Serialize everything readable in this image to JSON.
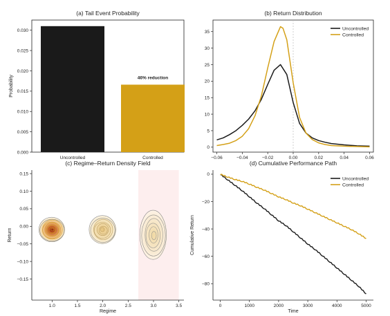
{
  "colors": {
    "uncontrolled": "#1a1a1a",
    "controlled": "#d4a017",
    "shade": "#fdeeee"
  },
  "chart_data": [
    {
      "type": "bar",
      "title": "(a) Tail Event Probability",
      "ylabel": "Probability",
      "categories": [
        "Uncontrolled",
        "Controlled"
      ],
      "values": [
        0.031,
        0.0166
      ],
      "ylim": [
        0,
        0.0325
      ],
      "yticks": [
        "0.000",
        "0.005",
        "0.010",
        "0.015",
        "0.020",
        "0.025",
        "0.030"
      ],
      "yticks_values": [
        0,
        0.005,
        0.01,
        0.015,
        0.02,
        0.025,
        0.03
      ],
      "annotation": "46% reduction"
    },
    {
      "type": "line",
      "title": "(b) Return Distribution",
      "xlim": [
        -0.063,
        0.063
      ],
      "ylim": [
        -1.5,
        38.5
      ],
      "xticks": [
        "−0.06",
        "−0.04",
        "−0.02",
        "0.00",
        "0.02",
        "0.04",
        "0.06"
      ],
      "xticks_values": [
        -0.06,
        -0.04,
        -0.02,
        0,
        0.02,
        0.04,
        0.06
      ],
      "yticks": [
        "0",
        "5",
        "10",
        "15",
        "20",
        "25",
        "30",
        "35"
      ],
      "yticks_values": [
        0,
        5,
        10,
        15,
        20,
        25,
        30,
        35
      ],
      "vline": 0,
      "legend": [
        "Uncontrolled",
        "Controlled"
      ],
      "legend_position": "top-right",
      "series": [
        {
          "name": "Uncontrolled",
          "x": [
            -0.06,
            -0.055,
            -0.05,
            -0.045,
            -0.04,
            -0.035,
            -0.03,
            -0.025,
            -0.02,
            -0.015,
            -0.01,
            -0.005,
            0,
            0.005,
            0.01,
            0.015,
            0.02,
            0.025,
            0.03,
            0.04,
            0.05,
            0.06
          ],
          "y": [
            2.2,
            2.8,
            3.8,
            5.0,
            6.6,
            8.5,
            11.0,
            14.5,
            19.0,
            23.3,
            25.0,
            22.0,
            13.5,
            7.2,
            4.3,
            2.8,
            2.0,
            1.5,
            1.1,
            0.7,
            0.4,
            0.3
          ]
        },
        {
          "name": "Controlled",
          "x": [
            -0.06,
            -0.055,
            -0.05,
            -0.045,
            -0.04,
            -0.035,
            -0.03,
            -0.025,
            -0.02,
            -0.015,
            -0.01,
            -0.008,
            -0.005,
            0,
            0.005,
            0.01,
            0.015,
            0.02,
            0.025,
            0.03,
            0.04,
            0.05,
            0.06
          ],
          "y": [
            0.5,
            0.8,
            1.2,
            2.0,
            3.3,
            5.6,
            9.5,
            15.5,
            24.0,
            32.0,
            36.5,
            36.0,
            32.5,
            19.5,
            9.0,
            4.3,
            2.3,
            1.3,
            0.8,
            0.5,
            0.3,
            0.2,
            0.1
          ]
        }
      ]
    },
    {
      "type": "contour",
      "title": "(c) Regime–Return Density Field",
      "xlabel": "Regime",
      "ylabel": "Return",
      "xlim": [
        0.6,
        3.6
      ],
      "ylim": [
        -0.21,
        0.16
      ],
      "xticks": [
        "1.0",
        "1.5",
        "2.0",
        "2.5",
        "3.0",
        "3.5"
      ],
      "xticks_values": [
        1.0,
        1.5,
        2.0,
        2.5,
        3.0,
        3.5
      ],
      "yticks": [
        "−0.15",
        "−0.10",
        "−0.05",
        "0.00",
        "0.05",
        "0.10",
        "0.15"
      ],
      "yticks_values": [
        -0.15,
        -0.1,
        -0.05,
        0,
        0.05,
        0.1,
        0.15
      ],
      "shaded_region": [
        2.7,
        3.5
      ],
      "clusters": [
        {
          "regime": 1.0,
          "center": -0.01,
          "sx": 0.26,
          "sy": 0.035,
          "levels": 9
        },
        {
          "regime": 2.0,
          "center": -0.01,
          "sx": 0.27,
          "sy": 0.04,
          "levels": 7
        },
        {
          "regime": 3.0,
          "center": -0.025,
          "sx": 0.27,
          "sy": 0.07,
          "levels": 6
        }
      ]
    },
    {
      "type": "line",
      "title": "(d) Cumulative Performance Path",
      "xlabel": "Time",
      "ylabel": "Cumulative Return",
      "xlim": [
        -250,
        5250
      ],
      "ylim": [
        -92,
        3
      ],
      "xticks": [
        "0",
        "1000",
        "2000",
        "3000",
        "4000",
        "5000"
      ],
      "xticks_values": [
        0,
        1000,
        2000,
        3000,
        4000,
        5000
      ],
      "yticks": [
        "−80",
        "−60",
        "−40",
        "−20",
        "0"
      ],
      "yticks_values": [
        -80,
        -60,
        -40,
        -20,
        0
      ],
      "legend": [
        "Uncontrolled",
        "Controlled"
      ],
      "legend_position": "top-right",
      "series": [
        {
          "name": "Uncontrolled",
          "x": [
            0,
            250,
            500,
            750,
            1000,
            1250,
            1500,
            1750,
            2000,
            2250,
            2500,
            2750,
            3000,
            3250,
            3500,
            3750,
            4000,
            4250,
            4500,
            4750,
            5000
          ],
          "y": [
            0,
            -4,
            -8,
            -12,
            -16.5,
            -21,
            -25,
            -29.5,
            -34,
            -37.5,
            -42,
            -46.5,
            -51,
            -55,
            -59.5,
            -64,
            -68.5,
            -73,
            -77.5,
            -82,
            -87.5
          ]
        },
        {
          "name": "Controlled",
          "x": [
            0,
            250,
            500,
            750,
            1000,
            1250,
            1500,
            1750,
            2000,
            2250,
            2500,
            2750,
            3000,
            3250,
            3500,
            3750,
            4000,
            4250,
            4500,
            4750,
            5000
          ],
          "y": [
            0,
            -2,
            -3.8,
            -5.2,
            -7.2,
            -9.5,
            -11.5,
            -14,
            -16.5,
            -18.5,
            -21,
            -23,
            -25.5,
            -28,
            -30.5,
            -33,
            -35.5,
            -38,
            -40.5,
            -43.5,
            -47
          ]
        }
      ]
    }
  ]
}
